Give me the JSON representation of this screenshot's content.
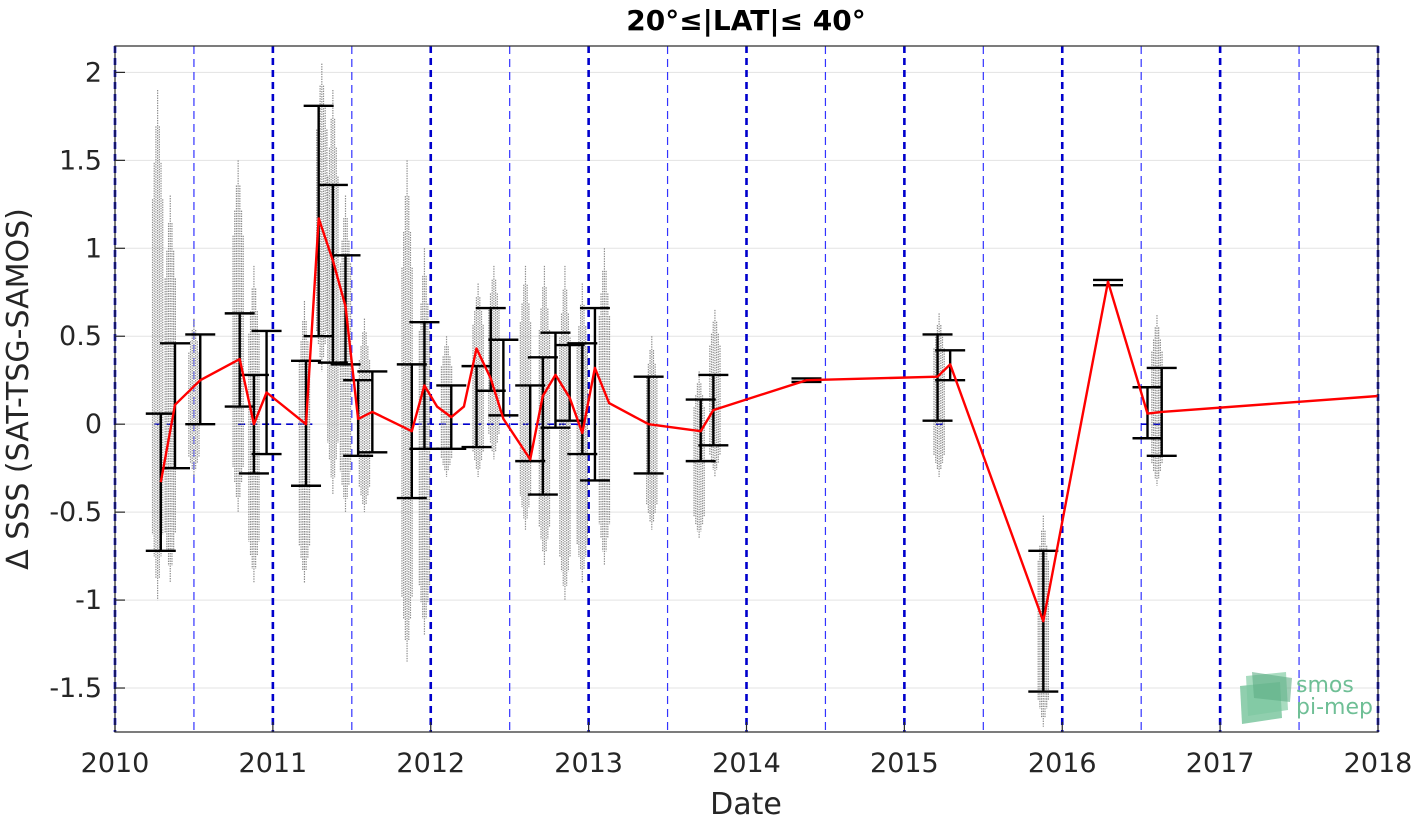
{
  "chart_data": {
    "type": "line",
    "title": "20°≤|LAT|≤ 40°",
    "xlabel": "Date",
    "ylabel": "Δ SSS (SAT-TSG-SAMOS)",
    "xlim": [
      2010,
      2018
    ],
    "ylim": [
      -1.75,
      2.15
    ],
    "x_ticks": [
      "2010",
      "2011",
      "2012",
      "2013",
      "2014",
      "2015",
      "2016",
      "2017",
      "2018"
    ],
    "y_ticks": [
      -1.5,
      -1,
      -0.5,
      0,
      0.5,
      1,
      1.5,
      2
    ],
    "y_tick_labels": [
      "-1.5",
      "-1",
      "-0.5",
      "0",
      "0.5",
      "1",
      "1.5",
      "2"
    ],
    "grid": true,
    "colors": {
      "mean_line": "#ff0000",
      "error_bars": "#000000",
      "scatter": "#808080",
      "year_lines": "#0000cc",
      "half_year_lines": "#3333ff",
      "zero_line": "#0000cc",
      "grid": "#e3e3e3"
    },
    "year_lines": [
      2010,
      2011,
      2012,
      2013,
      2014,
      2015,
      2016,
      2017,
      2018
    ],
    "half_year_lines": [
      2010.5,
      2011.5,
      2012.5,
      2013.5,
      2014.5,
      2015.5,
      2016.5,
      2017.5
    ],
    "zero_line_segments": [
      [
        2010.25,
        2010.4
      ],
      [
        2010.78,
        2011.25
      ],
      [
        2011.9,
        2013.05
      ],
      [
        2015.2,
        2015.27
      ],
      [
        2016.5,
        2016.65
      ]
    ],
    "series": [
      {
        "kind": "monthly_mean",
        "x": [
          2010.29,
          2010.38,
          2010.54,
          2010.79,
          2010.88,
          2010.96,
          2011.21,
          2011.29,
          2011.38,
          2011.46,
          2011.54,
          2011.63,
          2011.88,
          2011.96,
          2012.04,
          2012.13,
          2012.21,
          2012.29,
          2012.38,
          2012.46,
          2012.63,
          2012.71,
          2012.79,
          2012.88,
          2012.96,
          2013.04,
          2013.13,
          2013.38,
          2013.71,
          2013.79,
          2014.38,
          2015.21,
          2015.29,
          2015.88,
          2016.29,
          2016.54,
          2016.63,
          2018.0
        ],
        "y": [
          -0.33,
          0.11,
          0.25,
          0.37,
          0.0,
          0.18,
          0.0,
          1.17,
          0.93,
          0.67,
          0.03,
          0.07,
          -0.04,
          0.22,
          0.1,
          0.04,
          0.1,
          0.43,
          0.26,
          0.03,
          -0.2,
          0.16,
          0.28,
          0.15,
          -0.05,
          0.32,
          0.12,
          0.0,
          -0.04,
          0.08,
          0.25,
          0.27,
          0.34,
          -1.12,
          0.81,
          0.06,
          0.07,
          0.16
        ]
      },
      {
        "kind": "error_bars",
        "x": [
          2010.29,
          2010.38,
          2010.54,
          2010.79,
          2010.88,
          2010.96,
          2011.21,
          2011.29,
          2011.38,
          2011.46,
          2011.54,
          2011.63,
          2011.88,
          2011.96,
          2012.13,
          2012.29,
          2012.38,
          2012.46,
          2012.63,
          2012.71,
          2012.79,
          2012.88,
          2012.96,
          2013.04,
          2013.38,
          2013.71,
          2013.79,
          2014.38,
          2015.21,
          2015.29,
          2015.88,
          2016.29,
          2016.54,
          2016.63
        ],
        "low": [
          -0.72,
          -0.25,
          0.0,
          0.1,
          -0.28,
          -0.17,
          -0.35,
          0.5,
          0.35,
          0.34,
          -0.18,
          -0.16,
          -0.42,
          -0.14,
          -0.14,
          -0.13,
          0.19,
          0.05,
          -0.21,
          -0.4,
          -0.02,
          0.02,
          -0.17,
          -0.32,
          -0.28,
          -0.21,
          -0.12,
          0.24,
          0.02,
          0.25,
          -1.52,
          0.79,
          -0.08,
          -0.18
        ],
        "high": [
          0.06,
          0.46,
          0.51,
          0.63,
          0.28,
          0.53,
          0.36,
          1.81,
          1.36,
          0.96,
          0.25,
          0.3,
          0.34,
          0.58,
          0.22,
          0.33,
          0.66,
          0.48,
          0.22,
          0.38,
          0.52,
          0.45,
          0.46,
          0.66,
          0.27,
          0.14,
          0.28,
          0.26,
          0.51,
          0.42,
          -0.72,
          0.82,
          0.21,
          0.32
        ]
      },
      {
        "kind": "raw_scatter",
        "clusters": [
          {
            "x": 2010.27,
            "low": -1.0,
            "high": 1.9
          },
          {
            "x": 2010.35,
            "low": -0.9,
            "high": 1.3
          },
          {
            "x": 2010.5,
            "low": -0.3,
            "high": 0.6
          },
          {
            "x": 2010.78,
            "low": -0.5,
            "high": 1.5
          },
          {
            "x": 2010.88,
            "low": -0.9,
            "high": 0.9
          },
          {
            "x": 2011.2,
            "low": -0.9,
            "high": 0.7
          },
          {
            "x": 2011.31,
            "low": 0.3,
            "high": 2.05
          },
          {
            "x": 2011.38,
            "low": -0.4,
            "high": 1.9
          },
          {
            "x": 2011.46,
            "low": -0.5,
            "high": 1.3
          },
          {
            "x": 2011.58,
            "low": -0.5,
            "high": 0.6
          },
          {
            "x": 2011.85,
            "low": -1.35,
            "high": 1.5
          },
          {
            "x": 2011.96,
            "low": -1.2,
            "high": 1.0
          },
          {
            "x": 2012.1,
            "low": -0.3,
            "high": 0.5
          },
          {
            "x": 2012.3,
            "low": -0.3,
            "high": 0.8
          },
          {
            "x": 2012.4,
            "low": -0.2,
            "high": 0.9
          },
          {
            "x": 2012.6,
            "low": -0.6,
            "high": 0.9
          },
          {
            "x": 2012.72,
            "low": -0.8,
            "high": 0.9
          },
          {
            "x": 2012.85,
            "low": -1.0,
            "high": 0.9
          },
          {
            "x": 2012.96,
            "low": -0.9,
            "high": 0.8
          },
          {
            "x": 2013.1,
            "low": -0.8,
            "high": 1.0
          },
          {
            "x": 2013.4,
            "low": -0.6,
            "high": 0.5
          },
          {
            "x": 2013.7,
            "low": -0.65,
            "high": 0.3
          },
          {
            "x": 2013.8,
            "low": -0.3,
            "high": 0.65
          },
          {
            "x": 2015.22,
            "low": -0.3,
            "high": 0.63
          },
          {
            "x": 2015.88,
            "low": -1.72,
            "high": -0.52
          },
          {
            "x": 2016.6,
            "low": -0.35,
            "high": 0.62
          }
        ]
      }
    ]
  },
  "logo": {
    "alt": "smos pi-mep"
  }
}
